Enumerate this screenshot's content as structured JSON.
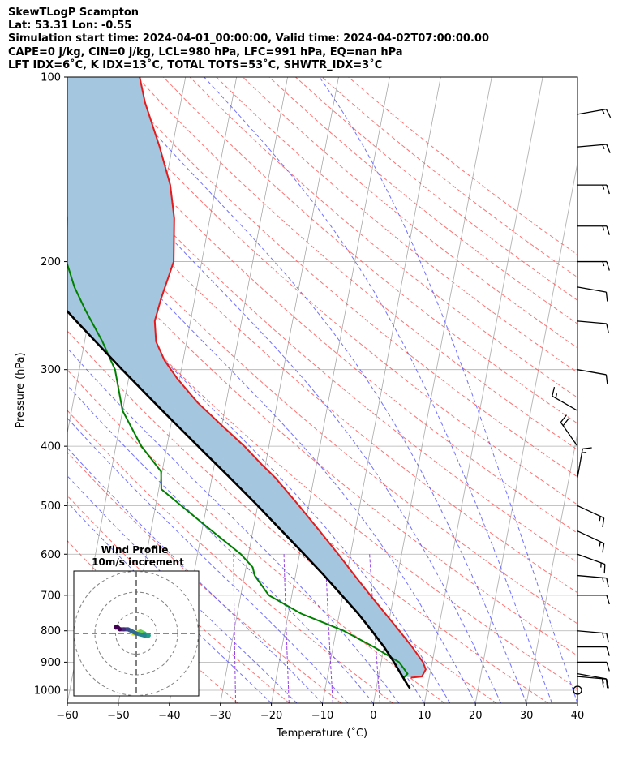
{
  "header": {
    "title": "SkewTLogP Scampton",
    "location": "Lat: 53.31   Lon: -0.55",
    "times": "Simulation start time: 2024-04-01_00:00:00, Valid time: 2024-04-02T07:00:00.00",
    "indices1": "CAPE=0 j/kg, CIN=0 j/kg, LCL=980 hPa, LFC=991 hPa, EQ=nan hPa",
    "indices2": "LFT IDX=6˚C, K IDX=13˚C, TOTAL TOTS=53˚C, SHWTR_IDX=3˚C"
  },
  "colors": {
    "temperature": "#e41a1c",
    "dewpoint": "#008000",
    "parcel": "#000000",
    "shading": "#a4c6de",
    "isotherms": "#a9a9a9",
    "dry_adiabats": "#ff4d4d",
    "moist_adiabats": "#4d4dff",
    "mixing_ratio": "#8a2be2"
  },
  "chart_data": {
    "type": "line",
    "subtype": "skew-T log-P diagram",
    "xlabel": "Temperature (˚C)",
    "ylabel": "Pressure (hPa)",
    "xlim": [
      -60,
      40
    ],
    "ylim": [
      1050,
      100
    ],
    "x_ticks": [
      -60,
      -50,
      -40,
      -30,
      -20,
      -10,
      0,
      10,
      20,
      30,
      40
    ],
    "x_tick_labels": [
      "−60",
      "−50",
      "−40",
      "−30",
      "−20",
      "−10",
      "0",
      "10",
      "20",
      "30",
      "40"
    ],
    "y_ticks": [
      100,
      200,
      300,
      400,
      500,
      600,
      700,
      800,
      900,
      1000
    ],
    "y_tick_labels": [
      "100",
      "200",
      "300",
      "400",
      "500",
      "600",
      "700",
      "800",
      "900",
      "1000"
    ],
    "series": [
      {
        "name": "Temperature",
        "pressure": [
          954,
          950,
          925,
          900,
          850,
          800,
          750,
          700,
          650,
          600,
          550,
          500,
          450,
          430,
          400,
          370,
          340,
          310,
          290,
          270,
          250,
          230,
          200,
          170,
          150,
          130,
          110,
          100
        ],
        "temperature": [
          6.4,
          8.5,
          9.0,
          8.2,
          5.5,
          2.4,
          -1.0,
          -4.6,
          -8.4,
          -12.4,
          -16.9,
          -21.9,
          -27.6,
          -30.5,
          -34.8,
          -40.0,
          -45.5,
          -50.5,
          -53.6,
          -56.0,
          -57.0,
          -56.6,
          -55.5,
          -57.0,
          -59.0,
          -62.5,
          -67.0,
          -69.0
        ]
      },
      {
        "name": "Dewpoint",
        "pressure": [
          954,
          940,
          900,
          850,
          800,
          750,
          700,
          650,
          630,
          600,
          550,
          500,
          470,
          440,
          400,
          350,
          300,
          270,
          240,
          220,
          200,
          170,
          140,
          120,
          100
        ],
        "temperature": [
          5.0,
          5.6,
          3.5,
          -2.0,
          -8.5,
          -17.5,
          -24.5,
          -28.0,
          -28.7,
          -31.5,
          -38.0,
          -45.0,
          -49.5,
          -50.2,
          -55.0,
          -60.0,
          -63.0,
          -66.5,
          -71.0,
          -74.0,
          -76.5,
          -78.0,
          -80.5,
          -84.5,
          -91.0
        ]
      },
      {
        "name": "Parcel profile",
        "pressure": [
          993,
          980,
          950,
          900,
          850,
          800,
          750,
          700,
          650,
          600,
          550,
          500,
          450,
          400,
          350,
          300,
          250,
          200,
          150,
          100
        ],
        "temperature": [
          6.6,
          6.0,
          4.7,
          2.5,
          0.0,
          -3.0,
          -6.3,
          -10.2,
          -14.4,
          -19.1,
          -24.3,
          -30.0,
          -36.5,
          -43.9,
          -52.2,
          -61.6,
          -72.4,
          -85.2,
          -101.0,
          -121.6
        ]
      }
    ],
    "wind_barbs": [
      {
        "pressure": 1000,
        "speed_kt": 0,
        "direction_deg": 0
      },
      {
        "pressure": 950,
        "speed_kt": 15,
        "direction_deg": 95
      },
      {
        "pressure": 940,
        "speed_kt": 20,
        "direction_deg": 100
      },
      {
        "pressure": 900,
        "speed_kt": 10,
        "direction_deg": 90
      },
      {
        "pressure": 850,
        "speed_kt": 10,
        "direction_deg": 90
      },
      {
        "pressure": 800,
        "speed_kt": 15,
        "direction_deg": 95
      },
      {
        "pressure": 700,
        "speed_kt": 10,
        "direction_deg": 90
      },
      {
        "pressure": 650,
        "speed_kt": 15,
        "direction_deg": 95
      },
      {
        "pressure": 600,
        "speed_kt": 15,
        "direction_deg": 110
      },
      {
        "pressure": 550,
        "speed_kt": 15,
        "direction_deg": 115
      },
      {
        "pressure": 500,
        "speed_kt": 15,
        "direction_deg": 115
      },
      {
        "pressure": 450,
        "speed_kt": 15,
        "direction_deg": 10
      },
      {
        "pressure": 400,
        "speed_kt": 20,
        "direction_deg": 325
      },
      {
        "pressure": 350,
        "speed_kt": 15,
        "direction_deg": 300
      },
      {
        "pressure": 300,
        "speed_kt": 10,
        "direction_deg": 100
      },
      {
        "pressure": 250,
        "speed_kt": 10,
        "direction_deg": 95
      },
      {
        "pressure": 220,
        "speed_kt": 10,
        "direction_deg": 100
      },
      {
        "pressure": 200,
        "speed_kt": 15,
        "direction_deg": 90
      },
      {
        "pressure": 175,
        "speed_kt": 15,
        "direction_deg": 90
      },
      {
        "pressure": 150,
        "speed_kt": 15,
        "direction_deg": 90
      },
      {
        "pressure": 130,
        "speed_kt": 15,
        "direction_deg": 85
      },
      {
        "pressure": 115,
        "speed_kt": 15,
        "direction_deg": 80
      }
    ],
    "hodograph": {
      "title": "Wind Profile",
      "subtitle": "10m/s increment",
      "ring_increment_ms": 10,
      "rings": 3,
      "u": [
        -2,
        -1,
        2,
        4,
        5,
        6,
        4,
        0,
        -2,
        -4,
        -6,
        -8,
        -9,
        -10
      ],
      "v": [
        0,
        0,
        1,
        0,
        -1,
        -1,
        -1,
        0,
        1,
        2,
        2,
        2,
        3,
        3
      ]
    }
  }
}
